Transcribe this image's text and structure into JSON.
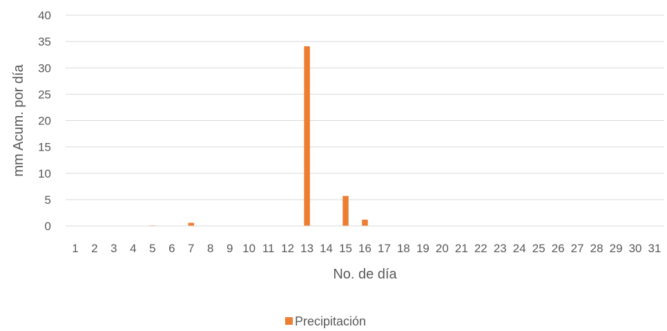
{
  "chart_data": {
    "type": "bar",
    "title": "",
    "xlabel": "No. de día",
    "ylabel": "mm Acum. por día",
    "categories": [
      "1",
      "2",
      "3",
      "4",
      "5",
      "6",
      "7",
      "8",
      "9",
      "10",
      "11",
      "12",
      "13",
      "14",
      "15",
      "16",
      "17",
      "18",
      "19",
      "20",
      "21",
      "22",
      "23",
      "24",
      "25",
      "26",
      "27",
      "28",
      "29",
      "30",
      "31"
    ],
    "series": [
      {
        "name": "Precipitación",
        "color": "#ED7D31",
        "values": [
          0,
          0,
          0,
          0,
          0.1,
          0,
          0.6,
          0,
          0,
          0,
          0,
          0,
          34.1,
          0,
          5.7,
          1.2,
          0,
          0,
          0,
          0,
          0,
          0,
          0,
          0,
          0,
          0,
          0,
          0,
          0,
          0,
          0
        ]
      }
    ],
    "ylim": [
      0,
      40
    ],
    "yticks": [
      0,
      5,
      10,
      15,
      20,
      25,
      30,
      35,
      40
    ],
    "grid": true,
    "legend_position": "bottom"
  }
}
